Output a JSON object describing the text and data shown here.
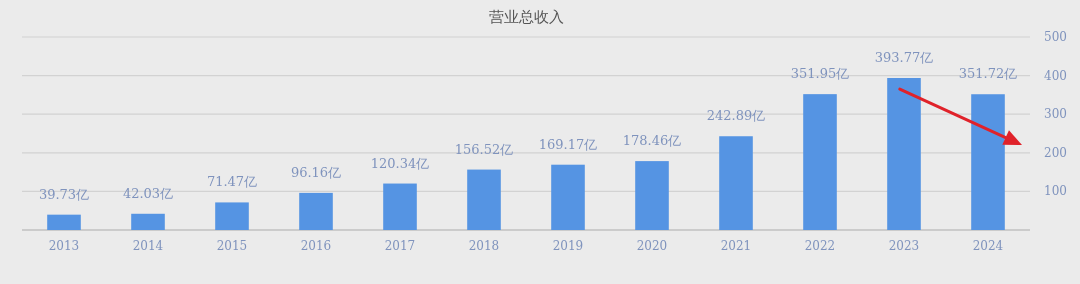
{
  "chart_data": {
    "type": "bar",
    "title": "营业总收入",
    "categories": [
      "2013",
      "2014",
      "2015",
      "2016",
      "2017",
      "2018",
      "2019",
      "2020",
      "2021",
      "2022",
      "2023",
      "2024"
    ],
    "values": [
      39.73,
      42.03,
      71.47,
      96.16,
      120.34,
      156.52,
      169.17,
      178.46,
      242.89,
      351.95,
      393.77,
      351.72
    ],
    "value_labels": [
      "39.73亿",
      "42.03亿",
      "71.47亿",
      "96.16亿",
      "120.34亿",
      "156.52亿",
      "169.17亿",
      "178.46亿",
      "242.89亿",
      "351.95亿",
      "393.77亿",
      "351.72亿"
    ],
    "color": "#5594e3",
    "ylim": [
      0,
      500
    ],
    "yticks": [
      {
        "value": 0,
        "label": null
      },
      100,
      200,
      300,
      400,
      500
    ],
    "grid": "y"
  }
}
